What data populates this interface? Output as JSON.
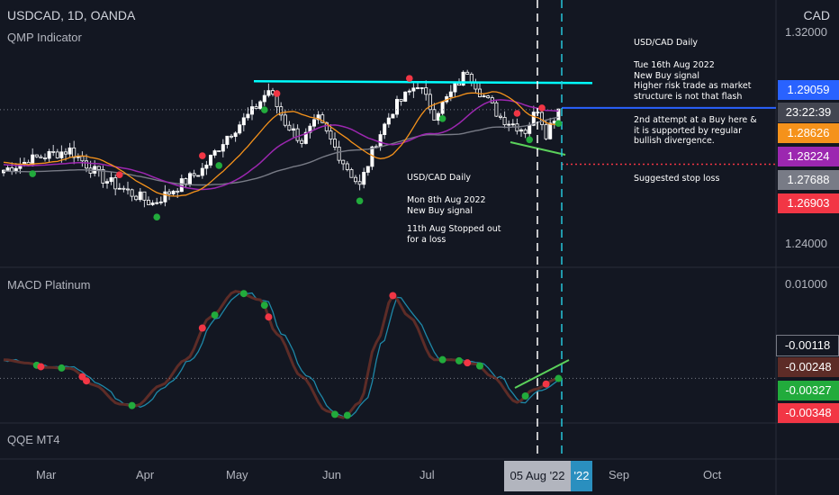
{
  "header": {
    "symbol": "USDCAD, 1D, OANDA",
    "indicator": "QMP Indicator",
    "currency": "CAD"
  },
  "panels": {
    "macd_label": "MACD Platinum",
    "qqe_label": "QQE MT4"
  },
  "price_axis": {
    "ticks": [
      "1.32000",
      "1.24000"
    ],
    "tags": [
      {
        "text": "1.29059",
        "color": "#2962ff",
        "price": 1.29059
      },
      {
        "text": "23:22:39",
        "color": "#434651",
        "price": 1.2872
      },
      {
        "text": "1.28626",
        "color": "#f5921b",
        "price": 1.28626
      },
      {
        "text": "1.28224",
        "color": "#9c27b0",
        "price": 1.28224
      },
      {
        "text": "1.27688",
        "color": "#787b86",
        "price": 1.27688
      },
      {
        "text": "1.26903",
        "color": "#f23645",
        "price": 1.26903
      }
    ]
  },
  "macd_axis": {
    "ticks": [
      "0.01000"
    ],
    "tags": [
      {
        "text": "-0.00118",
        "color": "#131722",
        "value": -0.00118
      },
      {
        "text": "-0.00248",
        "color": "#5d2c27",
        "value": -0.00248
      },
      {
        "text": "-0.00327",
        "color": "#22ab3c",
        "value": -0.00327
      },
      {
        "text": "-0.00348",
        "color": "#f23645",
        "value": -0.00348
      }
    ]
  },
  "time_axis": {
    "ticks": [
      "Mar",
      "Apr",
      "May",
      "Jun",
      "Jul",
      "Sep",
      "Oct"
    ],
    "highlight_left": "05 Aug '22",
    "highlight_right": "'22"
  },
  "annotations": {
    "a1": "USD/CAD Daily",
    "a2": "Tue 16th Aug 2022\nNew Buy signal\nHigher risk trade as market\nstructure is not that flash",
    "a3": "2nd attempt at a Buy here &\nit is supported by regular\nbullish divergence.",
    "a4": "Suggested stop loss",
    "a5": "USD/CAD Daily",
    "a6": "Mon 8th Aug 2022\nNew Buy signal",
    "a7": "11th Aug Stopped out\nfor a loss"
  },
  "colors": {
    "background": "#131722",
    "bull": "#ffffff",
    "bear": "#ffffff",
    "ma_fast": "#f5921b",
    "ma_mid": "#9c27b0",
    "ma_slow": "#787b86",
    "resistance": "#00ffff",
    "support": "#4caf50",
    "stop": "#f23645",
    "buy_dot": "#22ab3c",
    "sell_dot": "#f23645",
    "macd_line": "#5d2c27",
    "signal_line": "#1e88a8"
  },
  "chart_data": {
    "type": "candlestick",
    "symbol": "USDCAD",
    "timeframe": "1D",
    "source": "OANDA",
    "price_range": [
      1.232,
      1.325
    ],
    "levels": {
      "resistance": 1.3008,
      "support_trendline": [
        [
          1.2842,
          1.2812
        ]
      ],
      "stop_loss": 1.26903,
      "last_price": 1.29059
    },
    "macd_range": [
      -0.0062,
      0.0115
    ],
    "series": [
      {
        "name": "MA fast",
        "last": 1.28626
      },
      {
        "name": "MA mid",
        "last": 1.28224
      },
      {
        "name": "MA slow",
        "last": 1.27688
      }
    ]
  }
}
